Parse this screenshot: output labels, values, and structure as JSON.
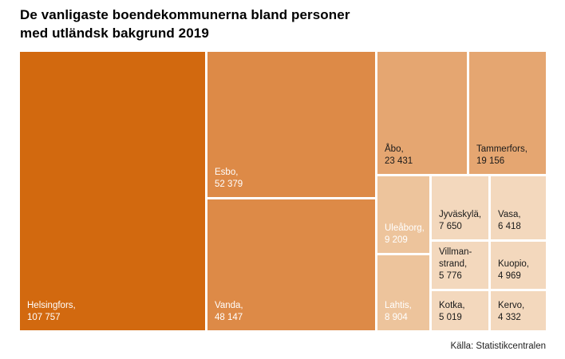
{
  "header": {
    "title_line1": "De vanligaste boendekommunerna bland personer",
    "title_line2": "med utländsk bakgrund 2019"
  },
  "footer": {
    "source": "Källa: Statistikcentralen"
  },
  "chart_data": {
    "type": "treemap",
    "title": "De vanligaste boendekommunerna bland personer med utländsk bakgrund 2019",
    "legend_position": "none",
    "items": [
      {
        "name": "Helsingfors",
        "value": 107757,
        "label_lines": [
          "Helsingfors,",
          "107 757"
        ],
        "color": "#d2690f",
        "text_color": "#ffffff"
      },
      {
        "name": "Esbo",
        "value": 52379,
        "label_lines": [
          "Esbo,",
          "52 379"
        ],
        "color": "#dd8a47",
        "text_color": "#ffffff"
      },
      {
        "name": "Vanda",
        "value": 48147,
        "label_lines": [
          "Vanda,",
          "48 147"
        ],
        "color": "#dd8a47",
        "text_color": "#ffffff"
      },
      {
        "name": "Åbo",
        "value": 23431,
        "label_lines": [
          "Åbo,",
          "23 431"
        ],
        "color": "#e5a671",
        "text_color": "#1a1a1a"
      },
      {
        "name": "Tammerfors",
        "value": 19156,
        "label_lines": [
          "Tammerfors,",
          "19 156"
        ],
        "color": "#e5a671",
        "text_color": "#1a1a1a"
      },
      {
        "name": "Uleåborg",
        "value": 9209,
        "label_lines": [
          "Uleåborg,",
          "9 209"
        ],
        "color": "#edc49c",
        "text_color": "#ffffff"
      },
      {
        "name": "Lahtis",
        "value": 8904,
        "label_lines": [
          "Lahtis,",
          "8 904"
        ],
        "color": "#edc49c",
        "text_color": "#ffffff"
      },
      {
        "name": "Jyväskylä",
        "value": 7650,
        "label_lines": [
          "Jyväskylä,",
          "7 650"
        ],
        "color": "#f3d8bd",
        "text_color": "#1a1a1a"
      },
      {
        "name": "Vasa",
        "value": 6418,
        "label_lines": [
          "Vasa,",
          "6 418"
        ],
        "color": "#f3d8bd",
        "text_color": "#1a1a1a"
      },
      {
        "name": "Villmanstrand",
        "value": 5776,
        "label_lines": [
          "Villman-",
          "strand,",
          "5 776"
        ],
        "color": "#f3d8bd",
        "text_color": "#1a1a1a"
      },
      {
        "name": "Kuopio",
        "value": 4969,
        "label_lines": [
          "Kuopio,",
          "4 969"
        ],
        "color": "#f3d8bd",
        "text_color": "#1a1a1a"
      },
      {
        "name": "Kotka",
        "value": 5019,
        "label_lines": [
          "Kotka,",
          "5 019"
        ],
        "color": "#f3d8bd",
        "text_color": "#1a1a1a"
      },
      {
        "name": "Kervo",
        "value": 4332,
        "label_lines": [
          "Kervo,",
          "4 332"
        ],
        "color": "#f3d8bd",
        "text_color": "#1a1a1a"
      }
    ]
  }
}
